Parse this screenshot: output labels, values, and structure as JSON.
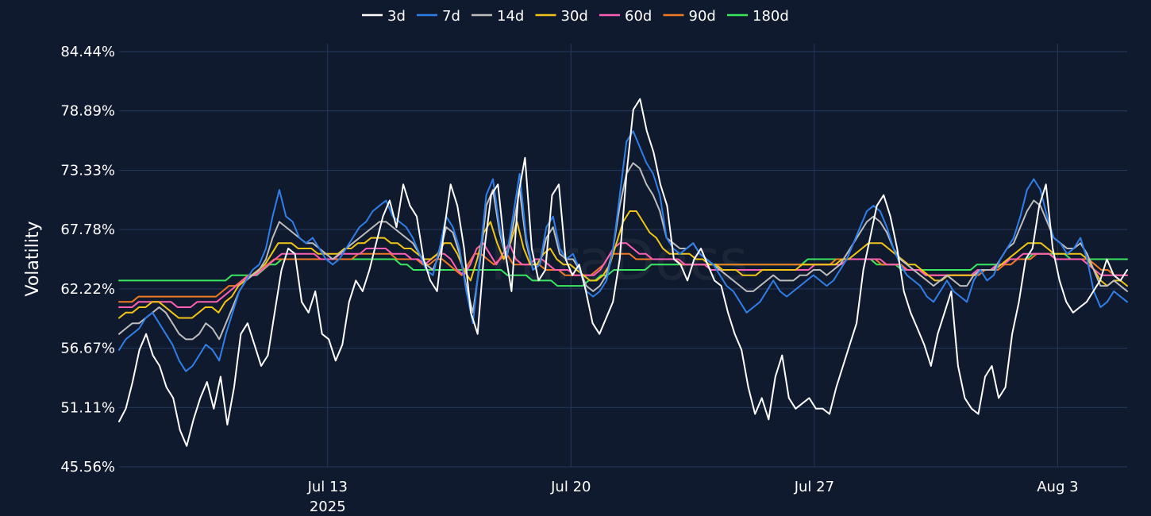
{
  "chart_data": {
    "type": "line",
    "ylabel": "Volatility",
    "ylim": [
      45.56,
      84.44
    ],
    "y_ticks": [
      "84.44%",
      "78.89%",
      "73.33%",
      "67.78%",
      "62.22%",
      "56.67%",
      "51.11%",
      "45.56%"
    ],
    "x_range": [
      "2025-07-07T00:00",
      "2025-08-05T00:00"
    ],
    "x_ticks": [
      {
        "date": "2025-07-13",
        "label": "Jul 13",
        "sublabel": "2025"
      },
      {
        "date": "2025-07-20",
        "label": "Jul 20",
        "sublabel": ""
      },
      {
        "date": "2025-07-27",
        "label": "Jul 27",
        "sublabel": ""
      },
      {
        "date": "2025-08-03",
        "label": "Aug 3",
        "sublabel": ""
      }
    ],
    "grid": true,
    "legend_position": "top-center",
    "watermark": "ParaDocs",
    "series": [
      {
        "name": "3d",
        "color": "#ffffff",
        "width": 2,
        "values": [
          49.8,
          51,
          53.5,
          56.5,
          58,
          56,
          55,
          53,
          52,
          49,
          47.5,
          50,
          52,
          53.5,
          51,
          54,
          49.5,
          53,
          58,
          59,
          57,
          55,
          56,
          60,
          64,
          66,
          65.5,
          61,
          60,
          62,
          58,
          57.5,
          55.5,
          57,
          61,
          63,
          62,
          64,
          66.5,
          69,
          70.5,
          68,
          72,
          70,
          69,
          65,
          63,
          62,
          67.5,
          72,
          70,
          66,
          60,
          58,
          66,
          71,
          72,
          66,
          62,
          71,
          74.5,
          66,
          63,
          64,
          71,
          72,
          65,
          63.5,
          64.5,
          62,
          59,
          58,
          59.5,
          61,
          65,
          73,
          79,
          80,
          77,
          75,
          72,
          70,
          65,
          64.5,
          63,
          65,
          66,
          64.5,
          63,
          62.5,
          60,
          58,
          56.5,
          53,
          50.5,
          52,
          50,
          54,
          56,
          52,
          51,
          51.5,
          52,
          51,
          51,
          50.5,
          53,
          55,
          57,
          59,
          64,
          67,
          70,
          71,
          69,
          66,
          62,
          60,
          58.5,
          57,
          55,
          58,
          60,
          62,
          55,
          52,
          51,
          50.5,
          54,
          55,
          52,
          53,
          58,
          61,
          65,
          66,
          70,
          72,
          66,
          63,
          61,
          60,
          60.5,
          61,
          62,
          63,
          65,
          63.5,
          63,
          64
        ]
      },
      {
        "name": "7d",
        "color": "#2f7fe8",
        "width": 2,
        "values": [
          56.5,
          57.5,
          58,
          58.5,
          59.5,
          60,
          59,
          58,
          57,
          55.5,
          54.5,
          55,
          56,
          57,
          56.5,
          55.5,
          58,
          60,
          62,
          63,
          64,
          64.5,
          66,
          69,
          71.5,
          69,
          68.5,
          67,
          66.5,
          67,
          66,
          65,
          64.5,
          65,
          66,
          67,
          68,
          68.5,
          69.5,
          70,
          70.5,
          69,
          68.5,
          68,
          67,
          65.5,
          64,
          63.5,
          66,
          69,
          68,
          66,
          62,
          59,
          65,
          71,
          72.5,
          68,
          65,
          69,
          73,
          67,
          64,
          64.5,
          68,
          69,
          66,
          65,
          65.5,
          64,
          62,
          61.5,
          62,
          63,
          66,
          71,
          76,
          77,
          75.5,
          74,
          73,
          71,
          67,
          66,
          65.5,
          66,
          66.5,
          65.5,
          65,
          64.5,
          63.5,
          62.5,
          62,
          61,
          60,
          60.5,
          61,
          62,
          63,
          62,
          61.5,
          62,
          62.5,
          63,
          63.5,
          63,
          62.5,
          63,
          64,
          65,
          66.5,
          68,
          69.5,
          70,
          69.5,
          68,
          66,
          64.5,
          63.5,
          63,
          62.5,
          61.5,
          61,
          62,
          63,
          62,
          61.5,
          61,
          63,
          64,
          63,
          63.5,
          65,
          66,
          67,
          69,
          71.5,
          72.5,
          71.5,
          69,
          67,
          66.5,
          65.5,
          66,
          67,
          65,
          62,
          60.5,
          61,
          62,
          61.5,
          61
        ]
      },
      {
        "name": "14d",
        "color": "#bdbdbd",
        "width": 2,
        "values": [
          58,
          58.5,
          59,
          59,
          59.5,
          60,
          60.5,
          60,
          59,
          58,
          57.5,
          57.5,
          58,
          59,
          58.5,
          57.5,
          59,
          60.5,
          62,
          63,
          63.5,
          64,
          65,
          67,
          68.5,
          68,
          67.5,
          67,
          66.5,
          66.5,
          66,
          65.5,
          65,
          65.5,
          66,
          66.5,
          67,
          67.5,
          68,
          68.5,
          68.5,
          68,
          67.5,
          67,
          66.5,
          65.5,
          64.5,
          64,
          65.5,
          68,
          67.5,
          65.5,
          62.5,
          60,
          64.5,
          70,
          71.5,
          67.5,
          65,
          68,
          71.5,
          66.5,
          64,
          64.5,
          67,
          68,
          65.5,
          65,
          65,
          64,
          62.5,
          62,
          62.5,
          63.5,
          66,
          70,
          73,
          74,
          73.5,
          72,
          71,
          69.5,
          67,
          66.5,
          66,
          66,
          66.5,
          65.5,
          65,
          64.5,
          64,
          63.5,
          63,
          62.5,
          62,
          62,
          62.5,
          63,
          63.5,
          63,
          63,
          63,
          63.5,
          63.5,
          64,
          64,
          63.5,
          64,
          64.5,
          65.5,
          66.5,
          67.5,
          68.5,
          69,
          68.5,
          67.5,
          66,
          65,
          64.5,
          64,
          63.5,
          63,
          62.5,
          63,
          63.5,
          63,
          62.5,
          62.5,
          63.5,
          64,
          64,
          64,
          65,
          66,
          66.5,
          68,
          69.5,
          70.5,
          70,
          68.5,
          67,
          66.5,
          66,
          66,
          66.5,
          65.5,
          64,
          62.5,
          62.5,
          63,
          62.5,
          62
        ]
      },
      {
        "name": "30d",
        "color": "#f2c417",
        "width": 2,
        "values": [
          59.5,
          60,
          60,
          60.5,
          60.5,
          61,
          61,
          60.5,
          60,
          59.5,
          59.5,
          59.5,
          60,
          60.5,
          60.5,
          60,
          61,
          61.5,
          62.5,
          63,
          63.5,
          64,
          64.5,
          65.5,
          66.5,
          66.5,
          66.5,
          66,
          66,
          66,
          65.5,
          65.5,
          65.5,
          65.5,
          66,
          66,
          66.5,
          66.5,
          67,
          67,
          67,
          66.5,
          66.5,
          66,
          66,
          65.5,
          65,
          65,
          65.5,
          66.5,
          66.5,
          65.5,
          64,
          63,
          65,
          67.5,
          68.5,
          66.5,
          65,
          66.5,
          68.5,
          66,
          64.5,
          64.5,
          65.5,
          66,
          65,
          64.5,
          64.5,
          64,
          63.5,
          63,
          63,
          63.5,
          64.5,
          66.5,
          68.5,
          69.5,
          69.5,
          68.5,
          67.5,
          67,
          66,
          65.5,
          65.5,
          65.5,
          65.5,
          65,
          65,
          64.5,
          64.5,
          64,
          64,
          64,
          63.5,
          63.5,
          63.5,
          64,
          64,
          64,
          64,
          64,
          64,
          64.5,
          64.5,
          64.5,
          64.5,
          64.5,
          64.5,
          65,
          65,
          65.5,
          66,
          66.5,
          66.5,
          66.5,
          66,
          65.5,
          65,
          64.5,
          64.5,
          64,
          63.5,
          63,
          63,
          63.5,
          63.5,
          63.5,
          63.5,
          63.5,
          64,
          64,
          64,
          64.5,
          65,
          65.5,
          66,
          66.5,
          66.5,
          66.5,
          66,
          65.5,
          65.5,
          65.5,
          65.5,
          65.5,
          65,
          64,
          63,
          62.5,
          63,
          63,
          62.5
        ]
      },
      {
        "name": "60d",
        "color": "#ff5fb4",
        "width": 2,
        "values": [
          60.5,
          60.5,
          60.5,
          61,
          61,
          61,
          61,
          61,
          61,
          60.5,
          60.5,
          60.5,
          61,
          61,
          61,
          61,
          61.5,
          62,
          62.5,
          63,
          63.5,
          63.5,
          64,
          64.5,
          65,
          65.5,
          65.5,
          65.5,
          65.5,
          65.5,
          65.5,
          65,
          65,
          65,
          65.5,
          65.5,
          65.5,
          65.5,
          66,
          66,
          66,
          66,
          65.5,
          65.5,
          65.5,
          65,
          65,
          64.5,
          65,
          65.5,
          65.5,
          65,
          64,
          63.5,
          64.5,
          66,
          66.5,
          65.5,
          64.5,
          65.5,
          66.5,
          65,
          64.5,
          64.5,
          65,
          65,
          64.5,
          64,
          64,
          64,
          63.5,
          63.5,
          63.5,
          63.5,
          64,
          65,
          66,
          66.5,
          66.5,
          66,
          65.5,
          65.5,
          65,
          65,
          65,
          65,
          65,
          64.5,
          64.5,
          64.5,
          64.5,
          64,
          64,
          64,
          64,
          64,
          64,
          64,
          64,
          64,
          64,
          64,
          64,
          64,
          64,
          64,
          64,
          64.5,
          64.5,
          64.5,
          64.5,
          64.5,
          65,
          65,
          65,
          65,
          65,
          65,
          64.5,
          64.5,
          64.5,
          64,
          64,
          64,
          63.5,
          63.5,
          63.5,
          63.5,
          63.5,
          63.5,
          63.5,
          63.5,
          64,
          64,
          64,
          64.5,
          64.5,
          65,
          65,
          65.5,
          65.5,
          65.5,
          65.5,
          65.5,
          65,
          65,
          65,
          65,
          65,
          64.5,
          64,
          63.5,
          63.5,
          63.5,
          63.5,
          63.5
        ]
      },
      {
        "name": "90d",
        "color": "#f07a24",
        "width": 2,
        "values": [
          61,
          61,
          61,
          61.5,
          61.5,
          61.5,
          61.5,
          61.5,
          61.5,
          61.5,
          61.5,
          61.5,
          61.5,
          61.5,
          61.5,
          61.5,
          62,
          62.5,
          62.5,
          63,
          63.5,
          63.5,
          64,
          64.5,
          65,
          65,
          65,
          65,
          65,
          65,
          65,
          65,
          65,
          65,
          65,
          65,
          65,
          65.5,
          65.5,
          65.5,
          65.5,
          65.5,
          65.5,
          65,
          65,
          65,
          65,
          64.5,
          64.5,
          65,
          65,
          64.5,
          64,
          63.5,
          64.5,
          65.5,
          65.5,
          65,
          64.5,
          65,
          65.5,
          64.5,
          64.5,
          64.5,
          64.5,
          64.5,
          64,
          64,
          64,
          63.5,
          63.5,
          63.5,
          63.5,
          63.5,
          64,
          64.5,
          65.5,
          65.5,
          65.5,
          65.5,
          65,
          65,
          65,
          65,
          65,
          65,
          65,
          64.5,
          64.5,
          64.5,
          64.5,
          64.5,
          64.5,
          64.5,
          64.5,
          64.5,
          64.5,
          64.5,
          64.5,
          64.5,
          64.5,
          64.5,
          64.5,
          64.5,
          64.5,
          64.5,
          64.5,
          64.5,
          64.5,
          64.5,
          64.5,
          65,
          65,
          65,
          65,
          65,
          65,
          65,
          64.5,
          64.5,
          64.5,
          64.5,
          64,
          64,
          64,
          63.5,
          63.5,
          63.5,
          63.5,
          63.5,
          63.5,
          63.5,
          63.5,
          63.5,
          64,
          64,
          64,
          64.5,
          64.5,
          65,
          65,
          65,
          65.5,
          65.5,
          65.5,
          65,
          65,
          65,
          65,
          65,
          65,
          64.5,
          64,
          64,
          63.5,
          63.5,
          63.5
        ]
      },
      {
        "name": "180d",
        "color": "#39e75f",
        "width": 2,
        "values": [
          63,
          63,
          63,
          63,
          63,
          63,
          63,
          63,
          63,
          63,
          63,
          63,
          63,
          63,
          63,
          63,
          63,
          63,
          63.5,
          63.5,
          63.5,
          63.5,
          63.5,
          64,
          64.5,
          64.5,
          65,
          65,
          65,
          65,
          65,
          65,
          65,
          65,
          65,
          65,
          65,
          65,
          65,
          65,
          65,
          65,
          65,
          65,
          65,
          64.5,
          64.5,
          64,
          64,
          64,
          64,
          64,
          64,
          64,
          64,
          64,
          64,
          64,
          64,
          64,
          64,
          64,
          63.5,
          63.5,
          63.5,
          63.5,
          63,
          63,
          63,
          63,
          62.5,
          62.5,
          62.5,
          62.5,
          62.5,
          63,
          63,
          63.5,
          63.5,
          64,
          64,
          64,
          64,
          64,
          64,
          64.5,
          64.5,
          64.5,
          64.5,
          64.5,
          64.5,
          64.5,
          64.5,
          64.5,
          64.5,
          64.5,
          64.5,
          64.5,
          64.5,
          64.5,
          64.5,
          64.5,
          64.5,
          64.5,
          64.5,
          64.5,
          64.5,
          64.5,
          64.5,
          64.5,
          65,
          65,
          65,
          65,
          65,
          65,
          65,
          65,
          65,
          65,
          65,
          64.5,
          64.5,
          64.5,
          64.5,
          64,
          64,
          64,
          64,
          64,
          64,
          64,
          64,
          64,
          64,
          64,
          64,
          64.5,
          64.5,
          64.5,
          64.5,
          64.5,
          65,
          65,
          65,
          65,
          65.5,
          65.5,
          65.5,
          65.5,
          65.5,
          65.5,
          65,
          65,
          65,
          65,
          65,
          65,
          65,
          65,
          65,
          65
        ]
      }
    ]
  }
}
